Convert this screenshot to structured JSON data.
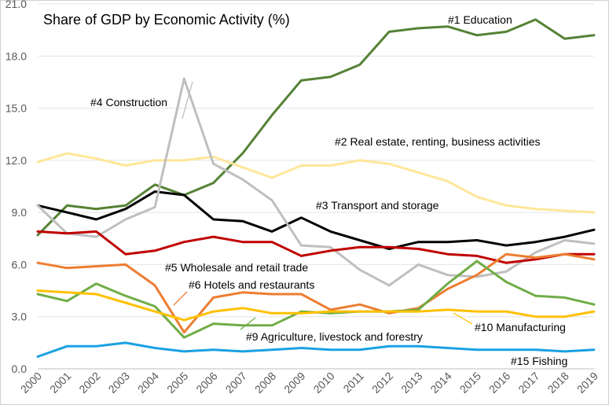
{
  "chart_data": {
    "type": "line",
    "title": "Share of GDP by Economic Activity (%)",
    "xlabel": "",
    "ylabel": "",
    "ylim": [
      0,
      21
    ],
    "y_ticks": [
      "0.0",
      "3.0",
      "6.0",
      "9.0",
      "12.0",
      "15.0",
      "18.0",
      "21.0"
    ],
    "categories": [
      "2000",
      "2001",
      "2002",
      "2003",
      "2004",
      "2005",
      "2006",
      "2007",
      "2008",
      "2009",
      "2010",
      "2011",
      "2012",
      "2013",
      "2014",
      "2015",
      "2016",
      "2017",
      "2018",
      "2019"
    ],
    "series": [
      {
        "name": "#1 Education",
        "color": "#548235",
        "values": [
          7.7,
          9.4,
          9.2,
          9.4,
          10.6,
          10.0,
          10.7,
          12.4,
          14.6,
          16.6,
          16.8,
          17.5,
          19.4,
          19.6,
          19.7,
          19.2,
          19.4,
          20.1,
          19.0,
          19.2
        ]
      },
      {
        "name": "#2 Real estate, renting, business activities",
        "color": "#FFE699",
        "values": [
          11.9,
          12.4,
          12.1,
          11.7,
          12.0,
          12.0,
          12.2,
          11.6,
          11.0,
          11.7,
          11.7,
          12.0,
          11.8,
          11.3,
          10.8,
          9.9,
          9.4,
          9.2,
          9.1,
          9.0
        ]
      },
      {
        "name": "#3 Transport and storage",
        "color": "#000000",
        "values": [
          9.4,
          9.0,
          8.6,
          9.2,
          10.2,
          10.0,
          8.6,
          8.5,
          7.9,
          8.7,
          7.9,
          7.4,
          6.9,
          7.3,
          7.3,
          7.4,
          7.1,
          7.3,
          7.6,
          8.0
        ]
      },
      {
        "name": "#4 Construction",
        "color": "#BFBFBF",
        "values": [
          9.4,
          7.8,
          7.6,
          8.6,
          9.3,
          16.7,
          11.8,
          10.9,
          9.7,
          7.1,
          7.0,
          5.7,
          4.8,
          6.0,
          5.4,
          5.3,
          5.6,
          6.7,
          7.4,
          7.2
        ]
      },
      {
        "name": "#5 Wholesale and retail trade",
        "color": "#C00000",
        "values": [
          7.9,
          7.8,
          7.9,
          6.6,
          6.8,
          7.3,
          7.6,
          7.3,
          7.3,
          6.5,
          6.8,
          7.0,
          7.0,
          6.9,
          6.6,
          6.5,
          6.1,
          6.3,
          6.6,
          6.6
        ]
      },
      {
        "name": "#6 Hotels and restaurants",
        "color": "#ED7D31",
        "values": [
          6.1,
          5.8,
          5.9,
          6.0,
          4.8,
          2.1,
          4.1,
          4.4,
          4.3,
          4.3,
          3.4,
          3.7,
          3.2,
          3.5,
          4.6,
          5.4,
          6.6,
          6.4,
          6.6,
          6.3
        ]
      },
      {
        "name": "#9 Agriculture, livestock and forestry",
        "color": "#70AD47",
        "values": [
          4.3,
          3.9,
          4.9,
          4.2,
          3.6,
          1.8,
          2.6,
          2.5,
          2.5,
          3.3,
          3.2,
          3.3,
          3.3,
          3.4,
          4.9,
          6.2,
          5.0,
          4.2,
          4.1,
          3.7
        ]
      },
      {
        "name": "#10 Manufacturing",
        "color": "#FFC000",
        "values": [
          4.5,
          4.4,
          4.3,
          3.8,
          3.3,
          2.8,
          3.3,
          3.5,
          3.2,
          3.2,
          3.3,
          3.3,
          3.3,
          3.3,
          3.4,
          3.3,
          3.3,
          3.0,
          3.0,
          3.3
        ]
      },
      {
        "name": "#15 Fishing",
        "color": "#1BA1E2",
        "values": [
          0.7,
          1.3,
          1.3,
          1.5,
          1.2,
          1.0,
          1.1,
          1.0,
          1.1,
          1.2,
          1.1,
          1.1,
          1.3,
          1.3,
          1.2,
          1.1,
          1.1,
          1.1,
          1.0,
          1.1
        ]
      }
    ],
    "annotations": [
      {
        "text": "#1 Education",
        "series": 0
      },
      {
        "text": "#4 Construction",
        "series": 3
      },
      {
        "text": "#2 Real estate, renting, business activities",
        "series": 1
      },
      {
        "text": "#3 Transport and storage",
        "series": 2
      },
      {
        "text": "#5 Wholesale and retail trade",
        "series": 4
      },
      {
        "text": "#6 Hotels and restaurants",
        "series": 5
      },
      {
        "text": "#9 Agriculture, livestock and forestry",
        "series": 6
      },
      {
        "text": "#10 Manufacturing",
        "series": 7
      },
      {
        "text": "#15 Fishing",
        "series": 8
      }
    ]
  }
}
